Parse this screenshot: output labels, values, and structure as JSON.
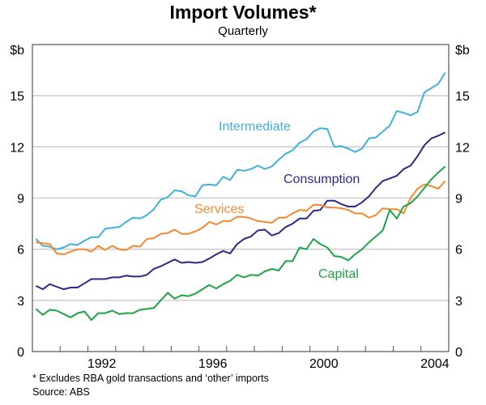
{
  "chart_data": {
    "type": "line",
    "title": "Import Volumes*",
    "subtitle": "Quarterly",
    "ylabel_left": "$b",
    "ylabel_right": "$b",
    "xlabel": "",
    "xlim": [
      1990,
      2005
    ],
    "ylim": [
      0,
      18
    ],
    "yticks": [
      0,
      3,
      6,
      9,
      12,
      15
    ],
    "xtick_labels": [
      "1992",
      "1996",
      "2000",
      "2004"
    ],
    "grid": true,
    "frequency": "quarterly",
    "x_start": "1990 Q1",
    "x_end": "2004 Q4",
    "series": [
      {
        "name": "Intermediate",
        "color": "#3fb0e0",
        "values": [
          6.6,
          6.2,
          6.15,
          6.0,
          6.1,
          6.3,
          6.25,
          6.5,
          6.7,
          6.7,
          7.2,
          7.25,
          7.3,
          7.6,
          7.85,
          7.8,
          8.0,
          8.35,
          8.9,
          9.05,
          9.45,
          9.4,
          9.15,
          9.1,
          9.75,
          9.8,
          9.75,
          10.25,
          10.05,
          10.65,
          10.6,
          10.7,
          10.9,
          10.7,
          10.85,
          11.25,
          11.6,
          11.8,
          12.25,
          12.45,
          12.9,
          13.1,
          13.05,
          12.0,
          12.05,
          11.9,
          11.7,
          11.9,
          12.5,
          12.55,
          12.9,
          13.25,
          14.1,
          14.0,
          13.85,
          14.05,
          15.2,
          15.45,
          15.7,
          16.35
        ]
      },
      {
        "name": "Consumption",
        "color": "#2b2a8c",
        "values": [
          3.85,
          3.65,
          3.95,
          3.8,
          3.65,
          3.75,
          3.75,
          4.0,
          4.25,
          4.25,
          4.25,
          4.35,
          4.35,
          4.45,
          4.4,
          4.4,
          4.5,
          4.85,
          5.0,
          5.2,
          5.4,
          5.2,
          5.25,
          5.2,
          5.25,
          5.45,
          5.7,
          5.9,
          5.75,
          6.3,
          6.6,
          6.75,
          7.1,
          7.15,
          6.8,
          6.95,
          7.3,
          7.5,
          7.8,
          7.8,
          8.25,
          8.3,
          8.85,
          8.85,
          8.65,
          8.5,
          8.5,
          8.75,
          9.1,
          9.6,
          10.0,
          10.15,
          10.3,
          10.7,
          10.9,
          11.45,
          12.1,
          12.5,
          12.65,
          12.85
        ]
      },
      {
        "name": "Services",
        "color": "#f7882f",
        "values": [
          6.4,
          6.35,
          6.3,
          5.75,
          5.7,
          5.85,
          6.0,
          6.0,
          5.85,
          6.2,
          5.95,
          6.2,
          6.0,
          5.95,
          6.2,
          6.15,
          6.6,
          6.65,
          6.9,
          6.95,
          7.15,
          6.9,
          6.9,
          7.05,
          7.25,
          7.6,
          7.45,
          7.65,
          7.65,
          7.9,
          7.9,
          7.8,
          7.65,
          7.6,
          7.55,
          7.85,
          7.85,
          8.1,
          8.3,
          8.25,
          8.6,
          8.6,
          8.45,
          8.45,
          8.4,
          8.3,
          8.1,
          8.1,
          7.85,
          8.0,
          8.4,
          8.35,
          8.35,
          8.1,
          9.0,
          9.55,
          9.8,
          9.7,
          9.55,
          10.0
        ]
      },
      {
        "name": "Capital",
        "color": "#1ea346",
        "values": [
          2.5,
          2.15,
          2.45,
          2.4,
          2.2,
          2.0,
          2.25,
          2.35,
          1.85,
          2.25,
          2.25,
          2.4,
          2.2,
          2.25,
          2.25,
          2.45,
          2.5,
          2.55,
          3.0,
          3.45,
          3.1,
          3.3,
          3.25,
          3.4,
          3.65,
          3.9,
          3.7,
          3.95,
          4.15,
          4.5,
          4.35,
          4.5,
          4.45,
          4.7,
          4.85,
          4.75,
          5.3,
          5.3,
          6.1,
          6.0,
          6.6,
          6.3,
          6.1,
          5.6,
          5.55,
          5.35,
          5.7,
          6.0,
          6.4,
          6.75,
          7.1,
          8.3,
          7.8,
          8.5,
          8.7,
          9.1,
          9.6,
          10.1,
          10.5,
          10.85
        ]
      }
    ],
    "footnotes": [
      "*   Excludes RBA gold transactions and ‘other’ imports",
      "Source: ABS"
    ]
  }
}
